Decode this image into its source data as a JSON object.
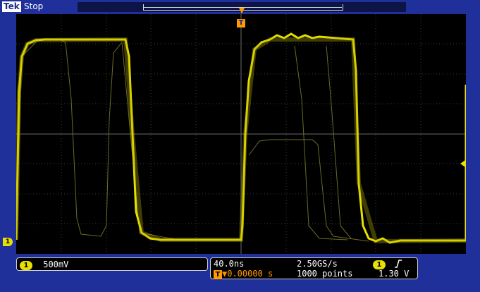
{
  "header": {
    "brand": "Tek",
    "status": "Stop"
  },
  "trigger": {
    "marker": "T",
    "arrow": "▼"
  },
  "channel1": {
    "marker": "1",
    "scale": "500mV",
    "color": "#e8e000"
  },
  "timebase": {
    "scale": "40.0ns",
    "sample_rate": "2.50GS/s",
    "record_length": "1000 points",
    "position": "0.00000 s",
    "position_prefix": "▼"
  },
  "trigger_info": {
    "source": "1",
    "slope_icon": "rising-edge-icon",
    "level": "1.30 V"
  },
  "colors": {
    "background": "#20309a",
    "screen": "#000000",
    "trace": "#e8e000",
    "trigger": "#ff9a00"
  }
}
